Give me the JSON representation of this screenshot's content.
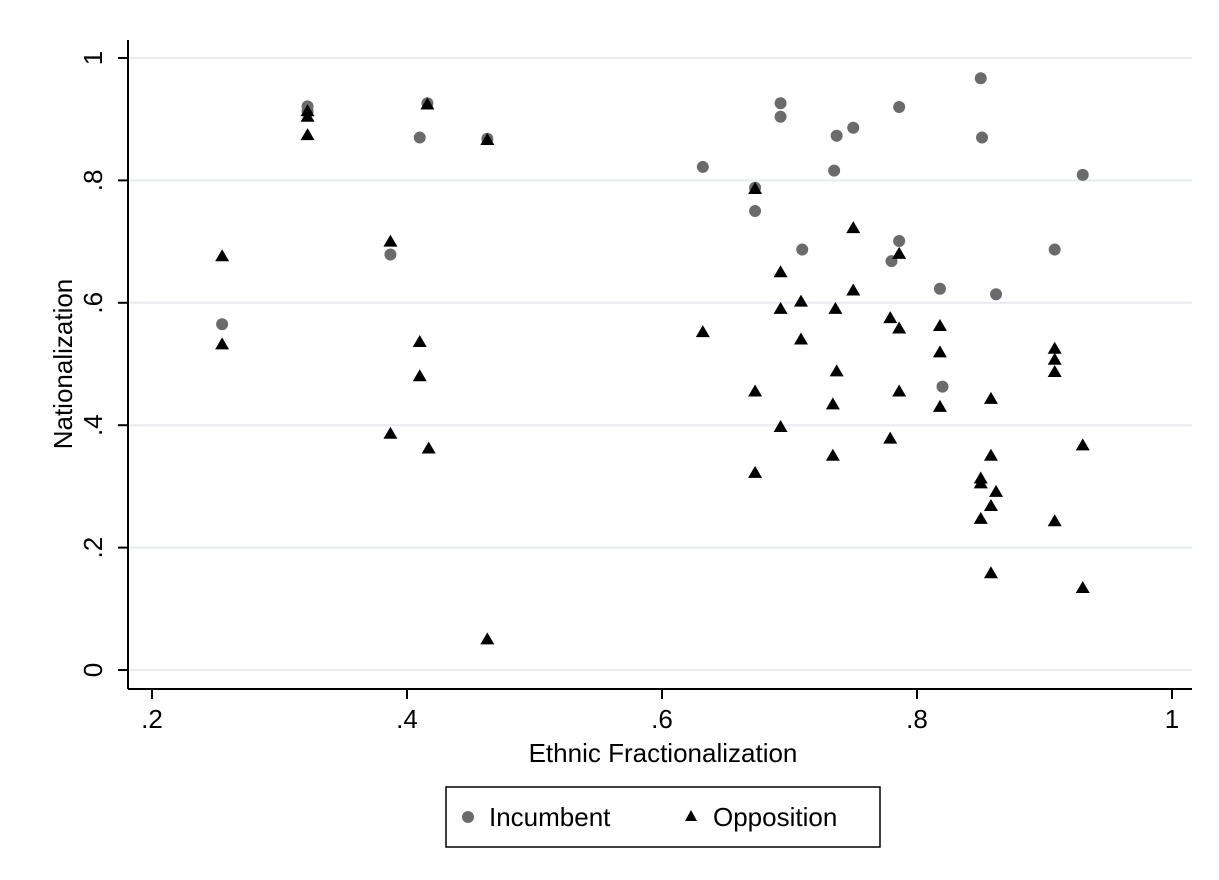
{
  "chart_data": {
    "type": "scatter",
    "title": "",
    "xlabel": "Ethnic Fractionalization",
    "ylabel": "Nationalization",
    "xlim": [
      0.2,
      1.0
    ],
    "ylim": [
      0.0,
      1.0
    ],
    "x_ticks": [
      ".2",
      ".4",
      ".6",
      ".8",
      "1"
    ],
    "x_tick_values": [
      0.2,
      0.4,
      0.6,
      0.8,
      1.0
    ],
    "y_ticks": [
      "0",
      ".2",
      ".4",
      ".6",
      ".8",
      "1"
    ],
    "y_tick_values": [
      0.0,
      0.2,
      0.4,
      0.6,
      0.8,
      1.0
    ],
    "grid": "horizontal",
    "legend_position": "bottom",
    "colors": {
      "incumbent": "#6b6b6b",
      "opposition": "#000000",
      "grid": "#e8ecef",
      "axis": "#000000"
    },
    "series": [
      {
        "name": "Incumbent",
        "marker": "circle",
        "points": [
          [
            0.255,
            0.565
          ],
          [
            0.322,
            0.921
          ],
          [
            0.322,
            0.913
          ],
          [
            0.387,
            0.679
          ],
          [
            0.41,
            0.87
          ],
          [
            0.416,
            0.926
          ],
          [
            0.463,
            0.868
          ],
          [
            0.632,
            0.822
          ],
          [
            0.673,
            0.75
          ],
          [
            0.673,
            0.788
          ],
          [
            0.693,
            0.926
          ],
          [
            0.693,
            0.904
          ],
          [
            0.71,
            0.687
          ],
          [
            0.735,
            0.816
          ],
          [
            0.737,
            0.873
          ],
          [
            0.75,
            0.886
          ],
          [
            0.78,
            0.668
          ],
          [
            0.786,
            0.92
          ],
          [
            0.786,
            0.701
          ],
          [
            0.818,
            0.623
          ],
          [
            0.82,
            0.463
          ],
          [
            0.85,
            0.967
          ],
          [
            0.851,
            0.87
          ],
          [
            0.862,
            0.614
          ],
          [
            0.908,
            0.687
          ],
          [
            0.93,
            0.809
          ]
        ]
      },
      {
        "name": "Opposition",
        "marker": "triangle",
        "points": [
          [
            0.255,
            0.676
          ],
          [
            0.255,
            0.532
          ],
          [
            0.322,
            0.913
          ],
          [
            0.322,
            0.904
          ],
          [
            0.322,
            0.874
          ],
          [
            0.387,
            0.7
          ],
          [
            0.387,
            0.386
          ],
          [
            0.41,
            0.536
          ],
          [
            0.41,
            0.48
          ],
          [
            0.416,
            0.924
          ],
          [
            0.417,
            0.362
          ],
          [
            0.463,
            0.866
          ],
          [
            0.463,
            0.05
          ],
          [
            0.632,
            0.552
          ],
          [
            0.673,
            0.786
          ],
          [
            0.673,
            0.455
          ],
          [
            0.673,
            0.322
          ],
          [
            0.693,
            0.65
          ],
          [
            0.693,
            0.59
          ],
          [
            0.693,
            0.397
          ],
          [
            0.709,
            0.602
          ],
          [
            0.709,
            0.54
          ],
          [
            0.736,
            0.59
          ],
          [
            0.737,
            0.488
          ],
          [
            0.734,
            0.434
          ],
          [
            0.734,
            0.35
          ],
          [
            0.75,
            0.722
          ],
          [
            0.75,
            0.62
          ],
          [
            0.779,
            0.575
          ],
          [
            0.779,
            0.378
          ],
          [
            0.786,
            0.68
          ],
          [
            0.786,
            0.558
          ],
          [
            0.786,
            0.455
          ],
          [
            0.818,
            0.562
          ],
          [
            0.818,
            0.519
          ],
          [
            0.818,
            0.43
          ],
          [
            0.85,
            0.313
          ],
          [
            0.85,
            0.305
          ],
          [
            0.85,
            0.247
          ],
          [
            0.858,
            0.443
          ],
          [
            0.858,
            0.35
          ],
          [
            0.858,
            0.268
          ],
          [
            0.858,
            0.158
          ],
          [
            0.862,
            0.291
          ],
          [
            0.908,
            0.525
          ],
          [
            0.908,
            0.507
          ],
          [
            0.908,
            0.487
          ],
          [
            0.908,
            0.243
          ],
          [
            0.93,
            0.367
          ],
          [
            0.93,
            0.134
          ]
        ]
      }
    ]
  },
  "legend": {
    "incumbent_label": "Incumbent",
    "opposition_label": "Opposition"
  }
}
